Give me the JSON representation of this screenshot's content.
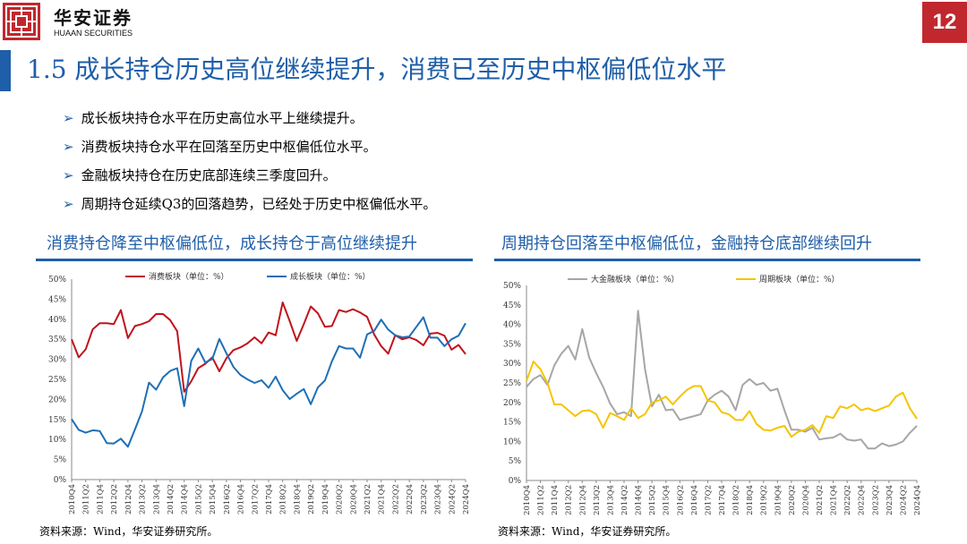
{
  "header": {
    "brand_cn": "华安证券",
    "brand_en": "HUAAN SECURITIES",
    "page_number": "12"
  },
  "slide": {
    "title": "1.5 成长持仓历史高位继续提升，消费已至历史中枢偏低位水平",
    "bullets": [
      "成长板块持仓水平在历史高位水平上继续提升。",
      "消费板块持仓水平在回落至历史中枢偏低位水平。",
      "金融板块持仓在历史底部连续三季度回升。",
      "周期持仓延续Q3的回落趋势，已经处于历史中枢偏低水平。"
    ]
  },
  "colors": {
    "brand_red": "#c0282e",
    "title_blue": "#1f5ea8",
    "consumer": "#c0141c",
    "growth": "#1f6fb5",
    "finance": "#a6a6a6",
    "cyclical": "#f5c400"
  },
  "chart_data": [
    {
      "type": "line",
      "title": "消费持仓降至中枢偏低位，成长持仓于高位继续提升",
      "source": "资料来源：Wind，华安证券研究所。",
      "ylim": [
        0,
        50
      ],
      "yticks": [
        "0%",
        "5%",
        "10%",
        "15%",
        "20%",
        "25%",
        "30%",
        "35%",
        "40%",
        "45%",
        "50%"
      ],
      "grid": false,
      "legend": "top",
      "x": [
        "2010Q4",
        "2011Q1",
        "2011Q2",
        "2011Q3",
        "2011Q4",
        "2012Q1",
        "2012Q2",
        "2012Q3",
        "2012Q4",
        "2013Q1",
        "2013Q2",
        "2013Q3",
        "2013Q4",
        "2014Q1",
        "2014Q2",
        "2014Q3",
        "2014Q4",
        "2015Q1",
        "2015Q2",
        "2015Q3",
        "2015Q4",
        "2016Q1",
        "2016Q2",
        "2016Q3",
        "2016Q4",
        "2017Q1",
        "2017Q2",
        "2017Q3",
        "2017Q4",
        "2018Q1",
        "2018Q2",
        "2018Q3",
        "2018Q4",
        "2019Q1",
        "2019Q2",
        "2019Q3",
        "2019Q4",
        "2020Q1",
        "2020Q2",
        "2020Q3",
        "2020Q4",
        "2021Q1",
        "2021Q2",
        "2021Q3",
        "2021Q4",
        "2022Q1",
        "2022Q2",
        "2022Q3",
        "2022Q4",
        "2023Q1",
        "2023Q2",
        "2023Q3",
        "2023Q4",
        "2024Q1",
        "2024Q2",
        "2024Q3",
        "2024Q4"
      ],
      "xticks": [
        "2010Q4",
        "2011Q2",
        "2011Q4",
        "2012Q2",
        "2012Q4",
        "2013Q2",
        "2013Q4",
        "2014Q2",
        "2014Q4",
        "2015Q2",
        "2015Q4",
        "2016Q2",
        "2016Q4",
        "2017Q2",
        "2017Q4",
        "2018Q2",
        "2018Q4",
        "2019Q2",
        "2019Q4",
        "2020Q2",
        "2020Q4",
        "2021Q2",
        "2021Q4",
        "2022Q2",
        "2022Q4",
        "2023Q2",
        "2023Q4",
        "2024Q2",
        "2024Q4"
      ],
      "series": [
        {
          "name": "消费板块（单位：%）",
          "color": "#c0141c",
          "values": [
            35,
            30.5,
            32.5,
            37.5,
            39,
            39,
            38.8,
            42.3,
            35.3,
            38.3,
            38.8,
            39.5,
            41.3,
            41.3,
            39.8,
            37,
            21.9,
            24.5,
            27.8,
            28.9,
            30.5,
            27,
            30.3,
            32.3,
            33,
            34,
            35.5,
            34,
            36.7,
            36,
            44.2,
            39.5,
            34.6,
            38.8,
            43.2,
            41.5,
            38.1,
            38.3,
            42.3,
            41.8,
            42.5,
            41.7,
            40.6,
            36.2,
            33.3,
            31.4,
            36,
            35,
            35.5,
            34.8,
            33.5,
            36.4,
            36.6,
            35.9,
            32.4,
            33.6,
            31.3
          ]
        },
        {
          "name": "成长板块（单位：%）",
          "color": "#1f6fb5",
          "values": [
            15.1,
            12.4,
            11.7,
            12.3,
            12.1,
            9.1,
            9,
            10.2,
            8.2,
            12.5,
            17,
            24.2,
            22.4,
            25.5,
            27.1,
            27.8,
            18.3,
            29.6,
            32.7,
            29.2,
            30.1,
            35.1,
            31.5,
            28.1,
            26.1,
            25,
            24.1,
            24.8,
            22.9,
            25.7,
            22.3,
            20.1,
            21.4,
            22.6,
            18.8,
            23,
            24.7,
            29.5,
            33.3,
            32.7,
            32.7,
            30.4,
            36.2,
            37.1,
            39.9,
            37.4,
            36,
            35.5,
            35.7,
            38.1,
            40.5,
            35.4,
            35.4,
            33.3,
            35,
            35.9,
            39
          ]
        }
      ]
    },
    {
      "type": "line",
      "title": "周期持仓回落至中枢偏低位，金融持仓底部继续回升",
      "source": "资料来源：Wind，华安证券研究所。",
      "ylim": [
        0,
        50
      ],
      "yticks": [
        "0%",
        "5%",
        "10%",
        "15%",
        "20%",
        "25%",
        "30%",
        "35%",
        "40%",
        "45%",
        "50%"
      ],
      "grid": false,
      "legend": "top",
      "x": [
        "2010Q4",
        "2011Q1",
        "2011Q2",
        "2011Q3",
        "2011Q4",
        "2012Q1",
        "2012Q2",
        "2012Q3",
        "2012Q4",
        "2013Q1",
        "2013Q2",
        "2013Q3",
        "2013Q4",
        "2014Q1",
        "2014Q2",
        "2014Q3",
        "2014Q4",
        "2015Q1",
        "2015Q2",
        "2015Q3",
        "2015Q4",
        "2016Q1",
        "2016Q2",
        "2016Q3",
        "2016Q4",
        "2017Q1",
        "2017Q2",
        "2017Q3",
        "2017Q4",
        "2018Q1",
        "2018Q2",
        "2018Q3",
        "2018Q4",
        "2019Q1",
        "2019Q2",
        "2019Q3",
        "2019Q4",
        "2020Q1",
        "2020Q2",
        "2020Q3",
        "2020Q4",
        "2021Q1",
        "2021Q2",
        "2021Q3",
        "2021Q4",
        "2022Q1",
        "2022Q2",
        "2022Q3",
        "2022Q4",
        "2023Q1",
        "2023Q2",
        "2023Q3",
        "2023Q4",
        "2024Q1",
        "2024Q2",
        "2024Q3",
        "2024Q4"
      ],
      "xticks": [
        "2010Q4",
        "2011Q2",
        "2011Q4",
        "2012Q2",
        "2012Q4",
        "2013Q2",
        "2013Q4",
        "2014Q2",
        "2014Q4",
        "2015Q2",
        "2015Q4",
        "2016Q2",
        "2016Q4",
        "2017Q2",
        "2017Q4",
        "2018Q2",
        "2018Q4",
        "2019Q2",
        "2019Q4",
        "2020Q2",
        "2020Q4",
        "2021Q2",
        "2021Q4",
        "2022Q2",
        "2022Q4",
        "2023Q2",
        "2023Q4",
        "2024Q2",
        "2024Q4"
      ],
      "series": [
        {
          "name": "大金融板块（单位：%）",
          "color": "#a6a6a6",
          "values": [
            24,
            26,
            27,
            24.5,
            29.5,
            32.5,
            34.5,
            31,
            38.8,
            31.5,
            27.5,
            24,
            19.7,
            17,
            17.5,
            16.5,
            43.5,
            28.5,
            19,
            22,
            18,
            18.2,
            15.5,
            16,
            16.5,
            17,
            20.5,
            22,
            23,
            21.5,
            18,
            24.5,
            26,
            24.5,
            25,
            23,
            23.5,
            18,
            13,
            13,
            12.5,
            13.5,
            10.5,
            10.8,
            11,
            12,
            10.5,
            10.2,
            10.5,
            8.2,
            8.2,
            9.5,
            8.8,
            9.2,
            10,
            12.2,
            14
          ]
        },
        {
          "name": "周期板块（单位：%）",
          "color": "#f5c400",
          "values": [
            25.5,
            30.5,
            28.5,
            25,
            19.5,
            19.5,
            18,
            16.5,
            17.8,
            18,
            17,
            13.5,
            17.3,
            16.5,
            15.5,
            18.5,
            16,
            17,
            20,
            20.5,
            21.5,
            19.5,
            21.5,
            23.2,
            24.2,
            24.2,
            20.5,
            20,
            17.5,
            17,
            15.5,
            15.5,
            17.8,
            14.5,
            13,
            12.8,
            13.5,
            14,
            11.2,
            12.5,
            13,
            14.2,
            12.2,
            16.5,
            16,
            19,
            18.5,
            19.5,
            18,
            18.5,
            17.8,
            18.5,
            19.2,
            21.5,
            22.5,
            18.5,
            15.8
          ]
        }
      ]
    }
  ]
}
